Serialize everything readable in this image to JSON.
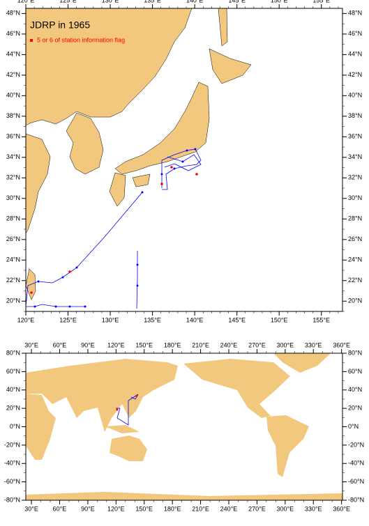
{
  "top_map": {
    "title": "JDRP in 1965",
    "legend": "5 or 6 of station information flag",
    "xlim": [
      120,
      157.5
    ],
    "ylim": [
      19,
      48.5
    ],
    "xticks": [
      {
        "value": 120,
        "label": "120°E"
      },
      {
        "value": 125,
        "label": "125°E"
      },
      {
        "value": 130,
        "label": "130°E"
      },
      {
        "value": 135,
        "label": "135°E"
      },
      {
        "value": 140,
        "label": "140°E"
      },
      {
        "value": 145,
        "label": "145°E"
      },
      {
        "value": 150,
        "label": "150°E"
      },
      {
        "value": 155,
        "label": "155°E"
      }
    ],
    "yticks": [
      {
        "value": 20,
        "label": "20°N"
      },
      {
        "value": 22,
        "label": "22°N"
      },
      {
        "value": 24,
        "label": "24°N"
      },
      {
        "value": 26,
        "label": "26°N"
      },
      {
        "value": 28,
        "label": "28°N"
      },
      {
        "value": 30,
        "label": "30°N"
      },
      {
        "value": 32,
        "label": "32°N"
      },
      {
        "value": 34,
        "label": "34°N"
      },
      {
        "value": 36,
        "label": "36°N"
      },
      {
        "value": 38,
        "label": "38°N"
      },
      {
        "value": 40,
        "label": "40°N"
      },
      {
        "value": 42,
        "label": "42°N"
      },
      {
        "value": 44,
        "label": "44°N"
      },
      {
        "value": 46,
        "label": "46°N"
      },
      {
        "value": 48,
        "label": "48°N"
      }
    ]
  },
  "bottom_map": {
    "xlim": [
      24,
      361
    ],
    "ylim": [
      -80,
      80
    ],
    "xticks": [
      {
        "value": 30,
        "label": "30°E"
      },
      {
        "value": 60,
        "label": "60°E"
      },
      {
        "value": 90,
        "label": "90°E"
      },
      {
        "value": 120,
        "label": "120°E"
      },
      {
        "value": 150,
        "label": "150°E"
      },
      {
        "value": 180,
        "label": "180°E"
      },
      {
        "value": 210,
        "label": "210°E"
      },
      {
        "value": 240,
        "label": "240°E"
      },
      {
        "value": 270,
        "label": "270°E"
      },
      {
        "value": 300,
        "label": "300°E"
      },
      {
        "value": 330,
        "label": "330°E"
      },
      {
        "value": 360,
        "label": "360°E"
      }
    ],
    "yticks": [
      {
        "value": 80,
        "label": "80°N"
      },
      {
        "value": 60,
        "label": "60°N"
      },
      {
        "value": 40,
        "label": "40°N"
      },
      {
        "value": 20,
        "label": "20°N"
      },
      {
        "value": 0,
        "label": "0°N"
      },
      {
        "value": -20,
        "label": "-20°N"
      },
      {
        "value": -40,
        "label": "-40°N"
      },
      {
        "value": -60,
        "label": "-60°N"
      },
      {
        "value": -80,
        "label": "-80°N"
      }
    ]
  }
}
